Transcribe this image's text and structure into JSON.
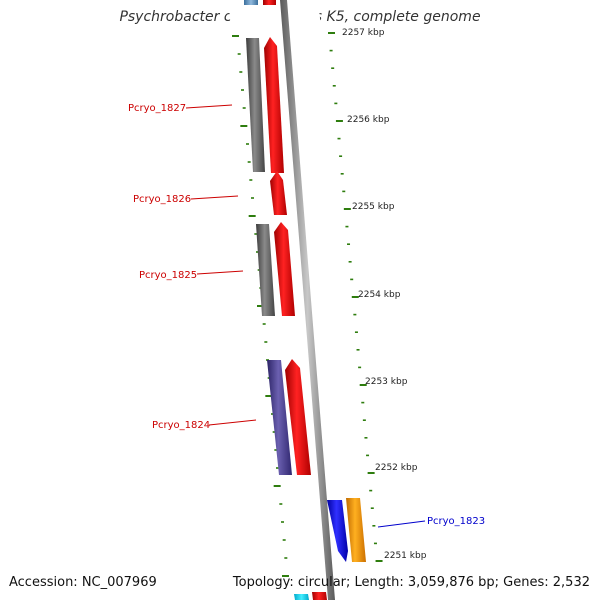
{
  "title": "Psychrobacter cryohalolentis K5, complete genome",
  "accession": "Accession: NC_007969",
  "topology": "Topology: circular; Length: 3,059,876 bp; Genes: 2,532",
  "colors": {
    "backbone": "#8a8a8a",
    "tick": "#2e7d0e",
    "label_red": "#cc0000",
    "label_blue": "#0000cc",
    "gene_red": "#ee0000",
    "gene_gray": "#666666",
    "gene_purple": "#4a3f8c",
    "gene_blue": "#0000dd",
    "gene_orange": "#ff9900"
  },
  "kbp_labels": [
    "2257 kbp",
    "2256 kbp",
    "2255 kbp",
    "2254 kbp",
    "2253 kbp",
    "2252 kbp",
    "2251 kbp"
  ],
  "gene_labels": [
    {
      "id": "gene-label-pcryo-1827",
      "text": "Pcryo_1827",
      "color": "red"
    },
    {
      "id": "gene-label-pcryo-1826",
      "text": "Pcryo_1826",
      "color": "red"
    },
    {
      "id": "gene-label-pcryo-1825",
      "text": "Pcryo_1825",
      "color": "red"
    },
    {
      "id": "gene-label-pcryo-1824",
      "text": "Pcryo_1824",
      "color": "red"
    },
    {
      "id": "gene-label-pcryo-1823",
      "text": "Pcryo_1823",
      "color": "blue"
    }
  ]
}
